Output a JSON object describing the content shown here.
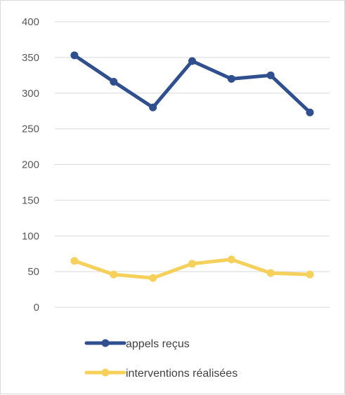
{
  "chart_data": {
    "type": "line",
    "title": "",
    "xlabel": "",
    "ylabel": "",
    "x": [
      1,
      2,
      3,
      4,
      5,
      6,
      7
    ],
    "ylim": [
      0,
      400
    ],
    "yticks": [
      0,
      50,
      100,
      150,
      200,
      250,
      300,
      350,
      400
    ],
    "ytick_labels": [
      "0",
      "50",
      "100",
      "150",
      "200",
      "250",
      "300",
      "350",
      "400"
    ],
    "grid": true,
    "legend_placement": "bottom-left",
    "series": [
      {
        "name": "appels reçus",
        "color": "#2f4f8f",
        "values": [
          353,
          316,
          280,
          345,
          320,
          325,
          273
        ]
      },
      {
        "name": "interventions réalisées",
        "color": "#f5d05a",
        "values": [
          65,
          46,
          41,
          61,
          67,
          48,
          46
        ]
      }
    ]
  }
}
